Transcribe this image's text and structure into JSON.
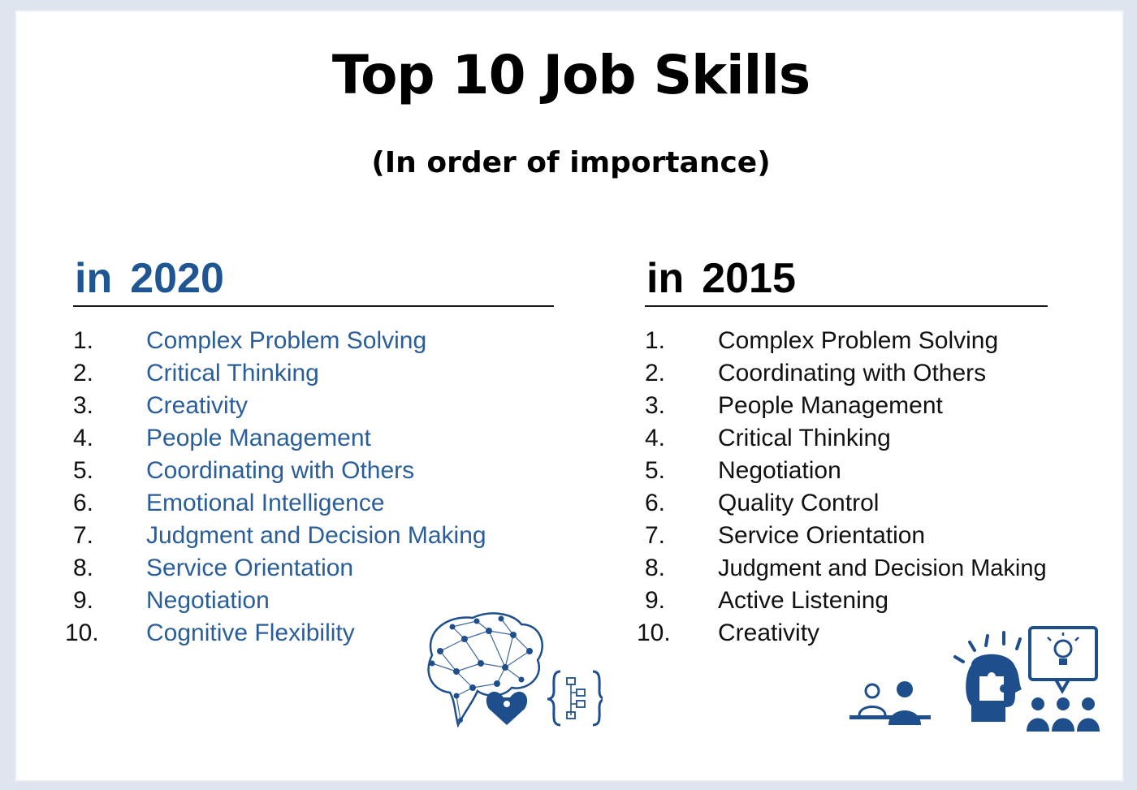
{
  "header": {
    "title": "Top 10 Job Skills",
    "subtitle": "(In order of importance)"
  },
  "columns": [
    {
      "in_label": "in",
      "year": "2020",
      "items": [
        {
          "num": "1.",
          "text": "Complex Problem Solving"
        },
        {
          "num": "2.",
          "text": "Critical Thinking"
        },
        {
          "num": "3.",
          "text": "Creativity"
        },
        {
          "num": "4.",
          "text": "People Management"
        },
        {
          "num": "5.",
          "text": "Coordinating with Others"
        },
        {
          "num": "6.",
          "text": "Emotional Intelligence"
        },
        {
          "num": "7.",
          "text": "Judgment and Decision Making"
        },
        {
          "num": "8.",
          "text": "Service Orientation"
        },
        {
          "num": "9.",
          "text": "Negotiation"
        },
        {
          "num": "10.",
          "text": "Cognitive Flexibility"
        }
      ]
    },
    {
      "in_label": "in",
      "year": "2015",
      "items": [
        {
          "num": "1.",
          "text": "Complex Problem Solving"
        },
        {
          "num": "2.",
          "text": "Coordinating with Others"
        },
        {
          "num": "3.",
          "text": "People Management"
        },
        {
          "num": "4.",
          "text": "Critical Thinking"
        },
        {
          "num": "5.",
          "text": "Negotiation"
        },
        {
          "num": "6.",
          "text": "Quality Control"
        },
        {
          "num": "7.",
          "text": "Service Orientation"
        },
        {
          "num": "8.",
          "text": "Judgment and Decision Making"
        },
        {
          "num": "9.",
          "text": "Active Listening"
        },
        {
          "num": "10.",
          "text": "Creativity"
        }
      ]
    }
  ],
  "icons": {
    "left": [
      "brain-network-icon",
      "heart-puzzle-icon",
      "code-flowchart-icon"
    ],
    "right": [
      "meeting-desk-icon",
      "head-puzzle-idea-icon",
      "presentation-audience-icon"
    ]
  },
  "colors": {
    "accent_blue": "#1f5593",
    "list_blue": "#2a5e9a",
    "icon_blue": "#1e4f8c"
  }
}
